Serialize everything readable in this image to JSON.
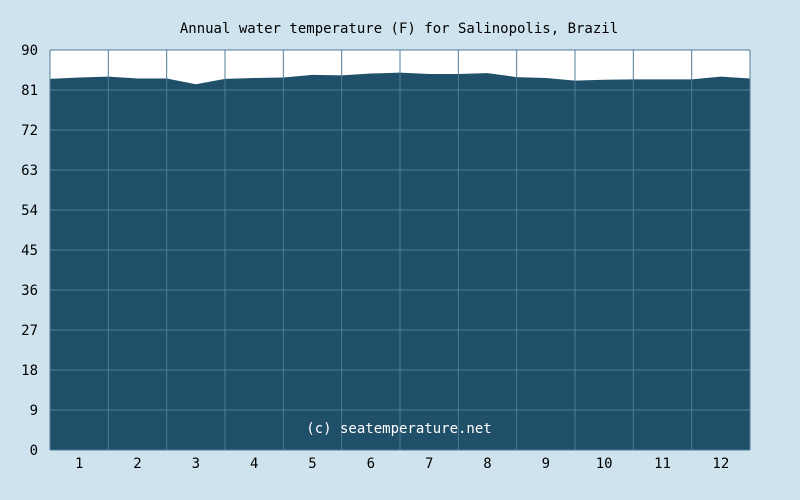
{
  "chart_data": {
    "type": "area",
    "title": "Annual water temperature (F) for Salinopolis, Brazil",
    "credit": "(c) seatemperature.net",
    "xlabel": "",
    "ylabel": "",
    "grid": true,
    "ylim": [
      0,
      90
    ],
    "y_ticks": [
      0,
      9,
      18,
      27,
      36,
      45,
      54,
      63,
      72,
      81,
      90
    ],
    "x_ticks": [
      "1",
      "2",
      "3",
      "4",
      "5",
      "6",
      "7",
      "8",
      "9",
      "10",
      "11",
      "12"
    ],
    "colors": {
      "background": "#cfe3ee",
      "fill": "#1f4f69",
      "plot_background": "#ffffff",
      "grid": "#4f7d98",
      "credit_text": "#ffffff"
    },
    "series": [
      {
        "x": [
          0.0,
          0.5,
          1.0,
          1.5,
          2.0,
          2.5,
          3.0,
          3.5,
          4.0,
          4.5,
          5.0,
          5.5,
          6.0,
          6.5,
          7.0,
          7.5,
          8.0,
          8.5,
          9.0,
          9.5,
          10.0,
          10.5,
          11.0,
          11.5,
          12.0
        ],
        "values": [
          83.5,
          83.8,
          84.0,
          83.6,
          83.6,
          82.3,
          83.5,
          83.7,
          83.8,
          84.4,
          84.3,
          84.7,
          84.9,
          84.6,
          84.6,
          84.8,
          83.9,
          83.7,
          83.1,
          83.3,
          83.4,
          83.4,
          83.4,
          84.0,
          83.6
        ]
      }
    ]
  }
}
